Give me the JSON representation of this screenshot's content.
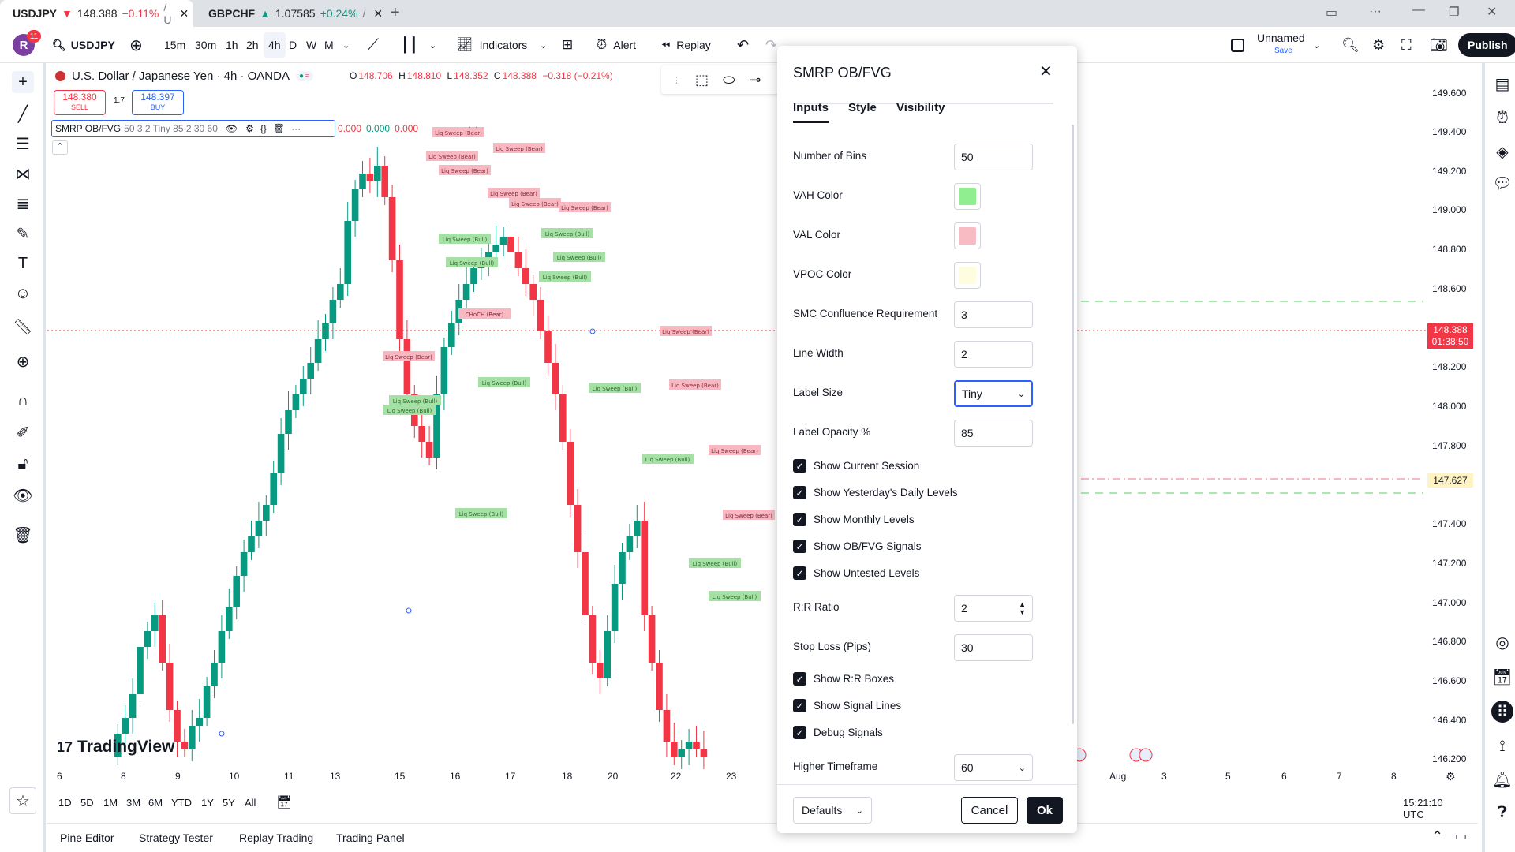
{
  "browser_tabs": [
    {
      "symbol": "USDJPY",
      "arrow": "▼",
      "price": "148.388",
      "change": "−0.11%",
      "tail": "/ U"
    },
    {
      "symbol": "GBPCHF",
      "arrow": "▲",
      "price": "1.07585",
      "change": "+0.24%",
      "tail": "/"
    }
  ],
  "toolbar": {
    "avatar_letter": "R",
    "notif_count": "11",
    "symbol": "USDJPY",
    "intervals": [
      "15m",
      "30m",
      "1h",
      "2h",
      "4h",
      "D",
      "W",
      "M"
    ],
    "indicators": "Indicators",
    "alert": "Alert",
    "replay": "Replay",
    "layout_name": "Unnamed",
    "layout_save": "Save",
    "publish": "Publish"
  },
  "legend": {
    "title": "U.S. Dollar / Japanese Yen · 4h · OANDA",
    "o_label": "O",
    "o": "148.706",
    "h_label": "H",
    "h": "148.810",
    "l_label": "L",
    "l": "148.352",
    "c_label": "C",
    "c": "148.388",
    "change": "−0.318 (−0.21%)",
    "sell_price": "148.380",
    "sell_label": "SELL",
    "spread": "1.7",
    "buy_price": "148.397",
    "buy_label": "BUY",
    "indicator": "SMRP OB/FVG",
    "indicator_params": "50 3 2 Tiny 85 2 30 60",
    "ind_values": [
      "0.000",
      "0.000",
      "0.000"
    ]
  },
  "price_axis": [
    "149.600",
    "149.400",
    "149.200",
    "149.000",
    "148.800",
    "148.600",
    "148.200",
    "148.000",
    "147.800",
    "147.400",
    "147.200",
    "147.000",
    "146.800",
    "146.600",
    "146.400",
    "146.200"
  ],
  "current_price": {
    "price": "148.388",
    "countdown": "01:38:50"
  },
  "marker_price": "147.627",
  "date_axis": [
    "6",
    "8",
    "9",
    "10",
    "11",
    "13",
    "15",
    "16",
    "17",
    "18",
    "20",
    "22",
    "23",
    "Aug",
    "3",
    "5",
    "6",
    "7",
    "8"
  ],
  "chart_labels": {
    "bear": "Liq Sweep (Bear)",
    "bull": "Liq Sweep (Bull)",
    "choch": "CHoCH (Bear)",
    "watermark": "TradingView"
  },
  "dialog": {
    "title": "SMRP OB/FVG",
    "tabs": [
      "Inputs",
      "Style",
      "Visibility"
    ],
    "number_of_bins_label": "Number of Bins",
    "number_of_bins": "50",
    "vah_color_label": "VAH Color",
    "vah_color": "#90ee90",
    "val_color_label": "VAL Color",
    "val_color": "#f8bbc4",
    "vpoc_color_label": "VPOC Color",
    "vpoc_color": "#fffde0",
    "smc_label": "SMC Confluence Requirement",
    "smc": "3",
    "line_width_label": "Line Width",
    "line_width": "2",
    "label_size_label": "Label Size",
    "label_size": "Tiny",
    "label_opacity_label": "Label Opacity %",
    "label_opacity": "85",
    "checks1": [
      "Show Current Session",
      "Show Yesterday's Daily Levels",
      "Show Monthly Levels",
      "Show OB/FVG Signals",
      "Show Untested Levels"
    ],
    "rr_label": "R:R Ratio",
    "rr": "2",
    "sl_label": "Stop Loss (Pips)",
    "sl": "30",
    "checks2": [
      "Show R:R Boxes",
      "Show Signal Lines",
      "Debug Signals"
    ],
    "htf_label": "Higher Timeframe",
    "htf": "60",
    "defaults": "Defaults",
    "cancel": "Cancel",
    "ok": "Ok"
  },
  "ranges": [
    "1D",
    "5D",
    "1M",
    "3M",
    "6M",
    "YTD",
    "1Y",
    "5Y",
    "All"
  ],
  "clock": "15:21:10 UTC",
  "bottom_tabs": [
    "Pine Editor",
    "Strategy Tester",
    "Replay Trading",
    "Trading Panel"
  ],
  "colors": {
    "up": "#089981",
    "down": "#f23645",
    "bull_label": "#a5e0a5",
    "bear_label": "#f7b8c2"
  }
}
